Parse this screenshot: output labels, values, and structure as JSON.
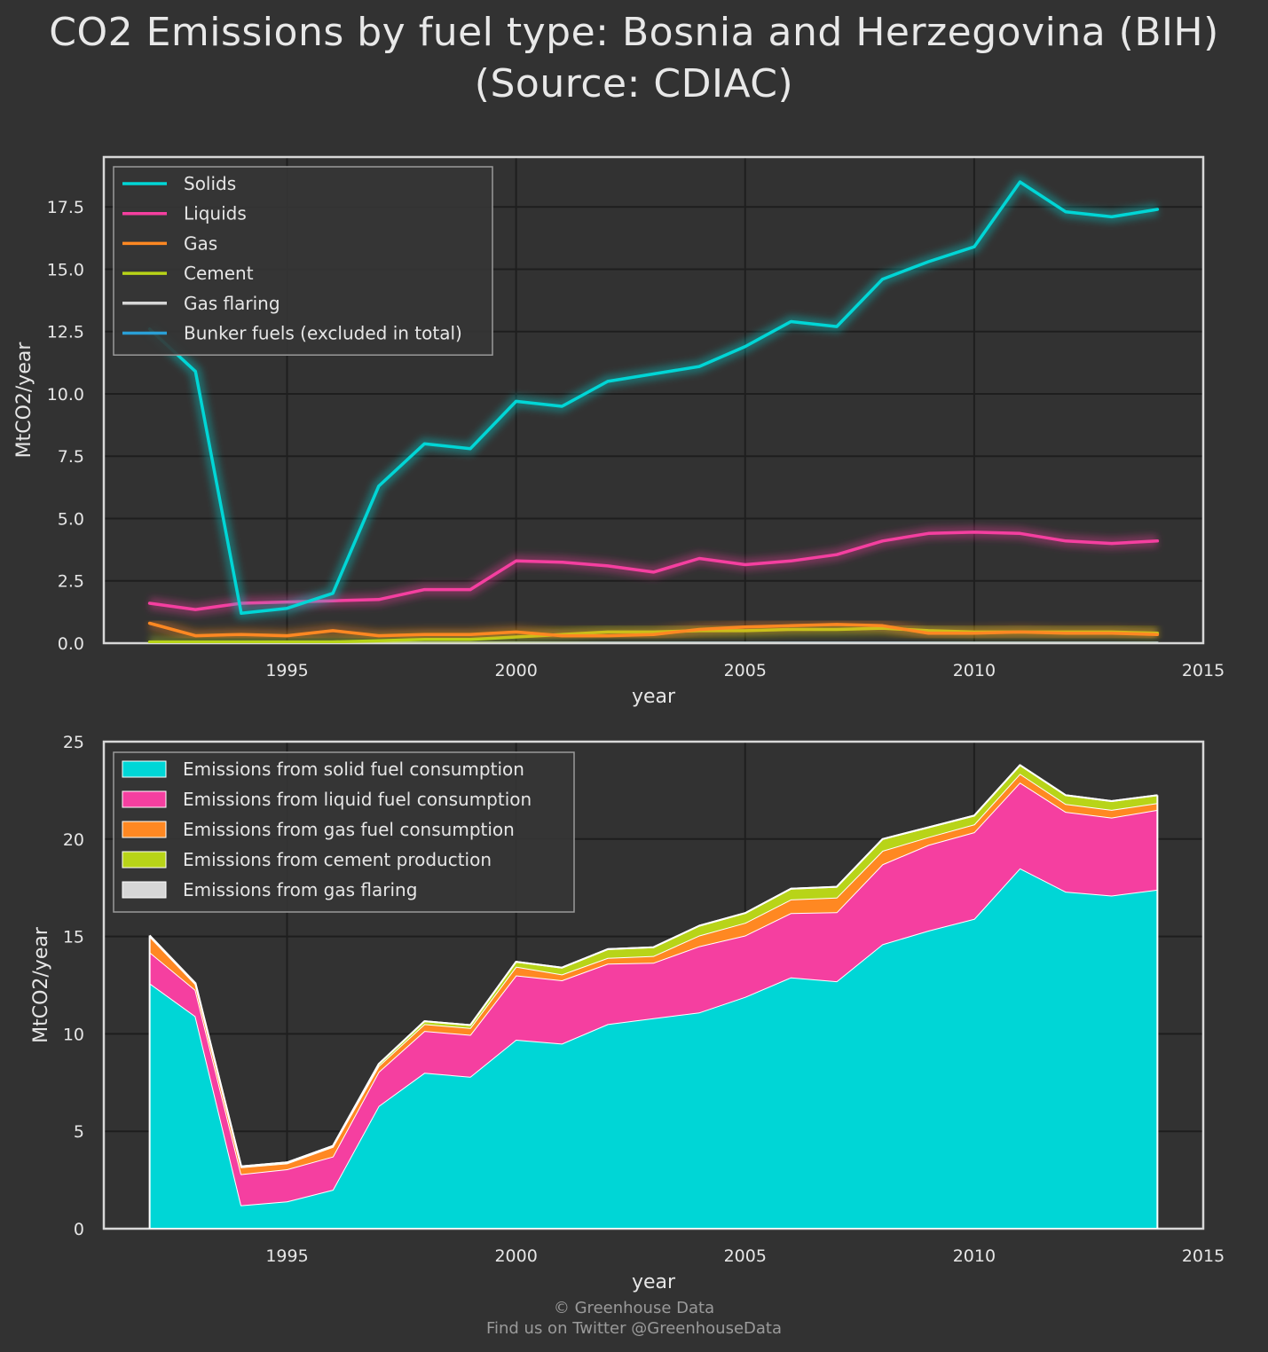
{
  "title_line1": "CO2 Emissions by fuel type: Bosnia and Herzegovina (BIH)",
  "title_line2": "(Source: CDIAC)",
  "credit_line1": "© Greenhouse Data",
  "credit_line2": "Find us on Twitter @GreenhouseData",
  "colors": {
    "background": "#323232",
    "solids": "#00d6d6",
    "liquids": "#f53fa0",
    "gas": "#ff8822",
    "cement": "#b8d418",
    "flaring": "#d6d6d6",
    "bunker": "#2a9fd6",
    "frame": "#d8d8d8",
    "grid": "#1e1e1e"
  },
  "chart_data": [
    {
      "type": "line",
      "xlabel": "year",
      "ylabel": "MtCO2/year",
      "xlim": [
        1991,
        2015
      ],
      "ylim": [
        0,
        19.5
      ],
      "x_ticks": [
        "1995",
        "2000",
        "2005",
        "2010",
        "2015"
      ],
      "y_ticks": [
        "0.0",
        "2.5",
        "5.0",
        "7.5",
        "10.0",
        "12.5",
        "15.0",
        "17.5"
      ],
      "grid": true,
      "legend_position": "top-left",
      "x": [
        1992,
        1993,
        1994,
        1995,
        1996,
        1997,
        1998,
        1999,
        2000,
        2001,
        2002,
        2003,
        2004,
        2005,
        2006,
        2007,
        2008,
        2009,
        2010,
        2011,
        2012,
        2013,
        2014
      ],
      "series": [
        {
          "name": "Solids",
          "color_key": "solids",
          "values": [
            12.6,
            10.9,
            1.2,
            1.4,
            2.0,
            6.3,
            8.0,
            7.8,
            9.7,
            9.5,
            10.5,
            10.8,
            11.1,
            11.9,
            12.9,
            12.7,
            14.6,
            15.3,
            15.9,
            18.5,
            17.3,
            17.1,
            17.4
          ]
        },
        {
          "name": "Liquids",
          "color_key": "liquids",
          "values": [
            1.6,
            1.35,
            1.6,
            1.65,
            1.7,
            1.75,
            2.15,
            2.15,
            3.3,
            3.25,
            3.1,
            2.85,
            3.4,
            3.15,
            3.3,
            3.55,
            4.1,
            4.4,
            4.45,
            4.4,
            4.1,
            4.0,
            4.1
          ]
        },
        {
          "name": "Gas",
          "color_key": "gas",
          "values": [
            0.8,
            0.3,
            0.35,
            0.3,
            0.5,
            0.3,
            0.35,
            0.35,
            0.45,
            0.3,
            0.3,
            0.35,
            0.55,
            0.65,
            0.7,
            0.75,
            0.7,
            0.4,
            0.4,
            0.45,
            0.4,
            0.4,
            0.35
          ]
        },
        {
          "name": "Cement",
          "color_key": "cement",
          "values": [
            0.05,
            0.05,
            0.05,
            0.05,
            0.05,
            0.1,
            0.15,
            0.15,
            0.25,
            0.35,
            0.45,
            0.45,
            0.5,
            0.5,
            0.55,
            0.55,
            0.6,
            0.5,
            0.45,
            0.45,
            0.45,
            0.45,
            0.4
          ]
        },
        {
          "name": "Gas flaring",
          "color_key": "flaring",
          "values": [
            0,
            0,
            0,
            0,
            0,
            0,
            0,
            0,
            0,
            0,
            0,
            0,
            0,
            0,
            0,
            0,
            0,
            0,
            0,
            0,
            0,
            0,
            0
          ]
        },
        {
          "name": "Bunker fuels (excluded in total)",
          "color_key": "bunker",
          "values": [
            0.0,
            0.0,
            0.0,
            0.0,
            0.0,
            0.0,
            0.0,
            0.0,
            0.0,
            0.0,
            0.0,
            0.0,
            0.0,
            0.0,
            0.0,
            0.0,
            0.0,
            0.0,
            0.0,
            0.0,
            0.0,
            0.0,
            0.0
          ]
        }
      ]
    },
    {
      "type": "area",
      "stacked": true,
      "xlabel": "year",
      "ylabel": "MtCO2/year",
      "xlim": [
        1991,
        2015
      ],
      "ylim": [
        0,
        25
      ],
      "x_ticks": [
        "1995",
        "2000",
        "2005",
        "2010",
        "2015"
      ],
      "y_ticks": [
        "0",
        "5",
        "10",
        "15",
        "20",
        "25"
      ],
      "grid": true,
      "legend_position": "top-left",
      "x": [
        1992,
        1993,
        1994,
        1995,
        1996,
        1997,
        1998,
        1999,
        2000,
        2001,
        2002,
        2003,
        2004,
        2005,
        2006,
        2007,
        2008,
        2009,
        2010,
        2011,
        2012,
        2013,
        2014
      ],
      "series": [
        {
          "name": "Emissions from solid fuel consumption",
          "color_key": "solids",
          "values": [
            12.6,
            10.9,
            1.2,
            1.4,
            2.0,
            6.3,
            8.0,
            7.8,
            9.7,
            9.5,
            10.5,
            10.8,
            11.1,
            11.9,
            12.9,
            12.7,
            14.6,
            15.3,
            15.9,
            18.5,
            17.3,
            17.1,
            17.4
          ]
        },
        {
          "name": "Emissions from liquid fuel consumption",
          "color_key": "liquids",
          "values": [
            1.6,
            1.35,
            1.6,
            1.65,
            1.7,
            1.75,
            2.15,
            2.15,
            3.3,
            3.25,
            3.1,
            2.85,
            3.4,
            3.15,
            3.3,
            3.55,
            4.1,
            4.4,
            4.45,
            4.4,
            4.1,
            4.0,
            4.1
          ]
        },
        {
          "name": "Emissions from gas fuel consumption",
          "color_key": "gas",
          "values": [
            0.8,
            0.3,
            0.35,
            0.3,
            0.5,
            0.3,
            0.35,
            0.35,
            0.45,
            0.3,
            0.3,
            0.35,
            0.55,
            0.65,
            0.7,
            0.75,
            0.7,
            0.4,
            0.4,
            0.45,
            0.4,
            0.4,
            0.35
          ]
        },
        {
          "name": "Emissions from cement production",
          "color_key": "cement",
          "values": [
            0.05,
            0.05,
            0.05,
            0.05,
            0.05,
            0.1,
            0.15,
            0.15,
            0.25,
            0.35,
            0.45,
            0.45,
            0.5,
            0.5,
            0.55,
            0.55,
            0.6,
            0.5,
            0.45,
            0.45,
            0.45,
            0.45,
            0.4
          ]
        },
        {
          "name": "Emissions from gas flaring",
          "color_key": "flaring",
          "values": [
            0,
            0,
            0,
            0,
            0,
            0,
            0,
            0,
            0,
            0,
            0,
            0,
            0,
            0,
            0,
            0,
            0,
            0,
            0,
            0,
            0,
            0,
            0
          ]
        }
      ]
    }
  ]
}
